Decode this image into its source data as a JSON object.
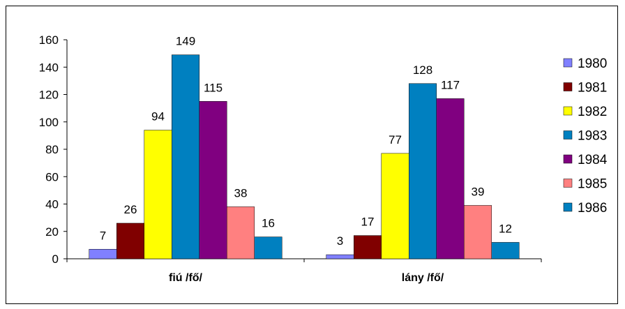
{
  "chart_data": {
    "type": "bar",
    "categories": [
      "fiú /fő/",
      "lány /fő/"
    ],
    "series": [
      {
        "name": "1980",
        "color": "#8080ff",
        "values": [
          7,
          3
        ]
      },
      {
        "name": "1981",
        "color": "#800000",
        "values": [
          26,
          17
        ]
      },
      {
        "name": "1982",
        "color": "#ffff00",
        "values": [
          94,
          77
        ]
      },
      {
        "name": "1983",
        "color": "#0080c0",
        "values": [
          149,
          128
        ]
      },
      {
        "name": "1984",
        "color": "#800080",
        "values": [
          115,
          117
        ]
      },
      {
        "name": "1985",
        "color": "#ff8080",
        "values": [
          38,
          39
        ]
      },
      {
        "name": "1986",
        "color": "#0080c0",
        "values": [
          16,
          12
        ]
      }
    ],
    "ylim": [
      0,
      160
    ],
    "yticks": [
      0,
      20,
      40,
      60,
      80,
      100,
      120,
      140,
      160
    ],
    "data_labels": true,
    "grid": false,
    "legend_position": "right"
  }
}
